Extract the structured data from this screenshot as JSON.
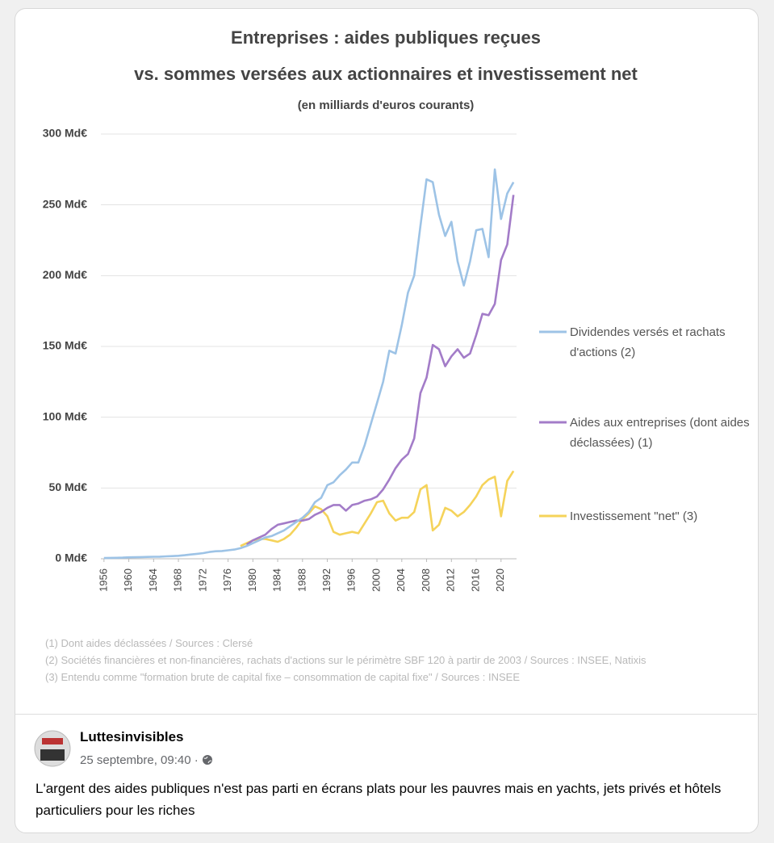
{
  "chart_data": {
    "type": "line",
    "title": [
      "Entreprises : aides publiques reçues",
      "vs. sommes versées aux actionnaires et investissement net"
    ],
    "subtitle": "(en milliards d'euros courants)",
    "x": [
      1956,
      1957,
      1958,
      1959,
      1960,
      1961,
      1962,
      1963,
      1964,
      1965,
      1966,
      1967,
      1968,
      1969,
      1970,
      1971,
      1972,
      1973,
      1974,
      1975,
      1976,
      1977,
      1978,
      1979,
      1980,
      1981,
      1982,
      1983,
      1984,
      1985,
      1986,
      1987,
      1988,
      1989,
      1990,
      1991,
      1992,
      1993,
      1994,
      1995,
      1996,
      1997,
      1998,
      1999,
      2000,
      2001,
      2002,
      2003,
      2004,
      2005,
      2006,
      2007,
      2008,
      2009,
      2010,
      2011,
      2012,
      2013,
      2014,
      2015,
      2016,
      2017,
      2018,
      2019,
      2020,
      2021,
      2022
    ],
    "series": [
      {
        "name": "Dividendes versés et rachats d'actions (2)",
        "color": "#9dc3e6",
        "values": [
          0.5,
          0.6,
          0.7,
          0.8,
          1,
          1.1,
          1.2,
          1.3,
          1.4,
          1.5,
          1.7,
          1.9,
          2.1,
          2.5,
          3,
          3.5,
          4,
          4.8,
          5.3,
          5.5,
          6,
          6.5,
          7.5,
          9,
          11,
          13,
          15,
          16,
          18,
          20,
          23,
          26,
          29,
          33,
          40,
          43,
          52,
          54,
          59,
          63,
          68,
          68,
          80,
          95,
          110,
          125,
          147,
          145,
          165,
          188,
          200,
          235,
          268,
          266,
          243,
          228,
          238,
          210,
          193,
          210,
          232,
          233,
          213,
          275,
          240,
          258,
          266
        ]
      },
      {
        "name": "Aides aux entreprises (dont aides déclassées) (1)",
        "color": "#a37cc8",
        "values": [
          null,
          null,
          null,
          null,
          null,
          null,
          null,
          null,
          null,
          null,
          null,
          null,
          null,
          null,
          null,
          null,
          null,
          null,
          null,
          null,
          null,
          null,
          null,
          10,
          13,
          15,
          17,
          21,
          24,
          25,
          26,
          27,
          27,
          28,
          31,
          33,
          36,
          38,
          38,
          34,
          38,
          39,
          41,
          42,
          44,
          49,
          56,
          64,
          70,
          74,
          85,
          117,
          128,
          151,
          148,
          136,
          143,
          148,
          142,
          145,
          158,
          173,
          172,
          180,
          211,
          222,
          257
        ]
      },
      {
        "name": "Investissement \"net\" (3)",
        "color": "#f5d35a",
        "values": [
          null,
          null,
          null,
          null,
          null,
          null,
          null,
          null,
          null,
          null,
          null,
          null,
          null,
          null,
          null,
          null,
          null,
          null,
          null,
          null,
          null,
          null,
          9,
          11,
          13,
          14,
          14,
          13,
          12,
          14,
          17,
          22,
          28,
          32,
          37,
          35,
          30,
          19,
          17,
          18,
          19,
          18,
          25,
          32,
          40,
          41,
          32,
          27,
          29,
          29,
          33,
          49,
          52,
          20,
          24,
          36,
          34,
          30,
          33,
          38,
          44,
          52,
          56,
          58,
          30,
          55,
          62
        ]
      }
    ],
    "xlim": [
      1955.5,
      2022.5
    ],
    "xticks": [
      1956,
      1960,
      1964,
      1968,
      1972,
      1976,
      1980,
      1984,
      1988,
      1992,
      1996,
      2000,
      2004,
      2008,
      2012,
      2016,
      2020
    ],
    "ylim": [
      0,
      300
    ],
    "yticks": [
      {
        "value": 0,
        "label": "0 Md€"
      },
      {
        "value": 50,
        "label": "50 Md€"
      },
      {
        "value": 100,
        "label": "100 Md€"
      },
      {
        "value": 150,
        "label": "150 Md€"
      },
      {
        "value": 200,
        "label": "200 Md€"
      },
      {
        "value": 250,
        "label": "250 Md€"
      },
      {
        "value": 300,
        "label": "300 Md€"
      }
    ],
    "grid": true,
    "legend": "right",
    "notes": [
      "(1) Dont aides déclassées / Sources : Clersé",
      "(2) Sociétés financières et non-financières, rachats d'actions sur le périmètre SBF 120 à partir de 2003 / Sources : INSEE, Natixis",
      "(3) Entendu comme \"formation brute de capital fixe – consommation de capital fixe\" / Sources : INSEE"
    ]
  },
  "post": {
    "author": "Luttesinvisibles",
    "meta": "25 septembre, 09:40 ·",
    "text": "L'argent des aides publiques n'est pas parti en écrans plats pour les pauvres mais en yachts, jets privés et hôtels particuliers pour les riches"
  }
}
